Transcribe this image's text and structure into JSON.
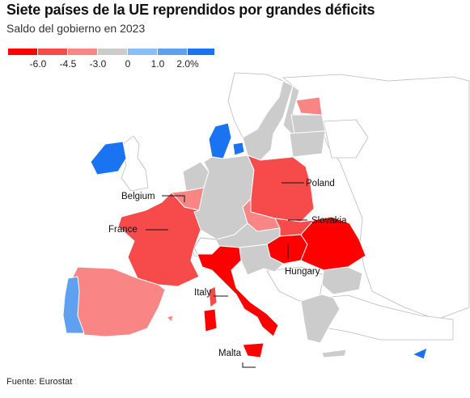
{
  "title": "Siete países de la UE reprendidos por grandes déficits",
  "subtitle": "Saldo del gobierno en 2023",
  "source": "Fuente: Eurostat",
  "legend": {
    "ticks": [
      "-6.0",
      "-4.5",
      "-3.0",
      "0",
      "1.0",
      "2.0%"
    ],
    "colors": [
      "#ff0000",
      "#f74a4a",
      "#f98585",
      "#cccccc",
      "#8dbdf7",
      "#5fa0f0",
      "#1a74f2"
    ]
  },
  "colors": {
    "deep_deficit": "#ff0000",
    "deficit": "#f74a4a",
    "mild_deficit": "#f98585",
    "neutral": "#cccccc",
    "mild_surplus": "#8dbdf7",
    "surplus": "#5fa0f0",
    "strong_surplus": "#1a74f2",
    "non_eu_land": "#ffffff",
    "border": "#ffffff",
    "outline": "#bbbbbb"
  },
  "labels": {
    "poland": "Poland",
    "belgium": "Belgium",
    "slovakia": "Slovakia",
    "france": "France",
    "hungary": "Hungary",
    "italy": "Italy",
    "malta": "Malta"
  }
}
